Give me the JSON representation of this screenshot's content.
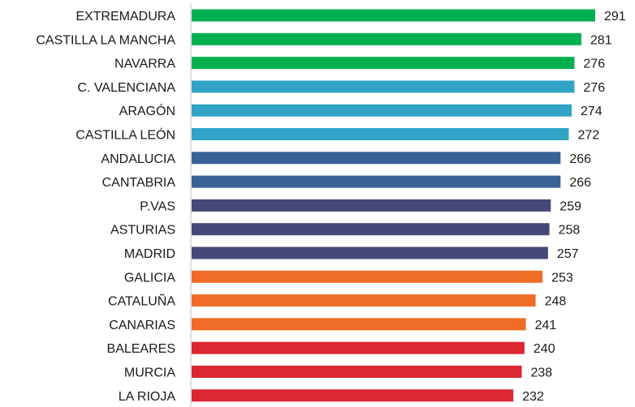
{
  "chart_data": {
    "type": "bar",
    "orientation": "horizontal",
    "categories": [
      "EXTREMADURA",
      "CASTILLA LA MANCHA",
      "NAVARRA",
      "C. VALENCIANA",
      "ARAGÓN",
      "CASTILLA LEÓN",
      "ANDALUCIA",
      "CANTABRIA",
      "P.VAS",
      "ASTURIAS",
      "MADRID",
      "GALICIA",
      "CATALUÑA",
      "CANARIAS",
      "BALEARES",
      "MURCIA",
      "LA RIOJA"
    ],
    "values": [
      291,
      281,
      276,
      276,
      274,
      272,
      266,
      266,
      259,
      258,
      257,
      253,
      248,
      241,
      240,
      238,
      232
    ],
    "bar_colors": [
      "#00b050",
      "#00b050",
      "#00b050",
      "#31a3c6",
      "#31a3c6",
      "#31a3c6",
      "#3a6296",
      "#3a6296",
      "#464878",
      "#464878",
      "#464878",
      "#ef6c24",
      "#ef6c24",
      "#ef6c24",
      "#dc2632",
      "#dc2632",
      "#dc2632"
    ],
    "xlim": [
      0,
      291
    ],
    "data_labels": true,
    "grid": false,
    "legend": "none",
    "title": "",
    "xlabel": "",
    "ylabel": ""
  },
  "colors": {
    "axis_line": "#bfbfbf",
    "text": "#1a1a1a"
  }
}
